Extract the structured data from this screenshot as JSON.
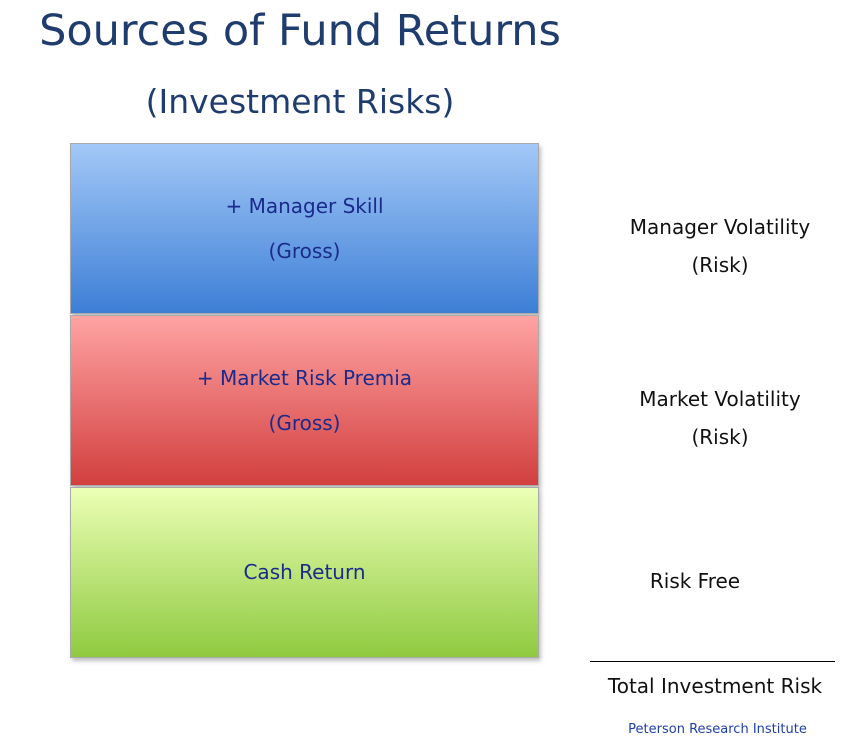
{
  "header": {
    "title": "Sources of Fund Returns",
    "subtitle": "(Investment Risks)"
  },
  "layers": [
    {
      "lines": [
        "+ Manager Skill",
        "(Gross)"
      ],
      "risk": [
        "Manager Volatility",
        "(Risk)"
      ]
    },
    {
      "lines": [
        "+ Market Risk Premia",
        "(Gross)"
      ],
      "risk": [
        "Market Volatility",
        "(Risk)"
      ]
    },
    {
      "lines": [
        "Cash Return"
      ],
      "risk": [
        "Risk Free"
      ]
    }
  ],
  "total": "Total Investment Risk",
  "footer": "Peterson Research Institute"
}
